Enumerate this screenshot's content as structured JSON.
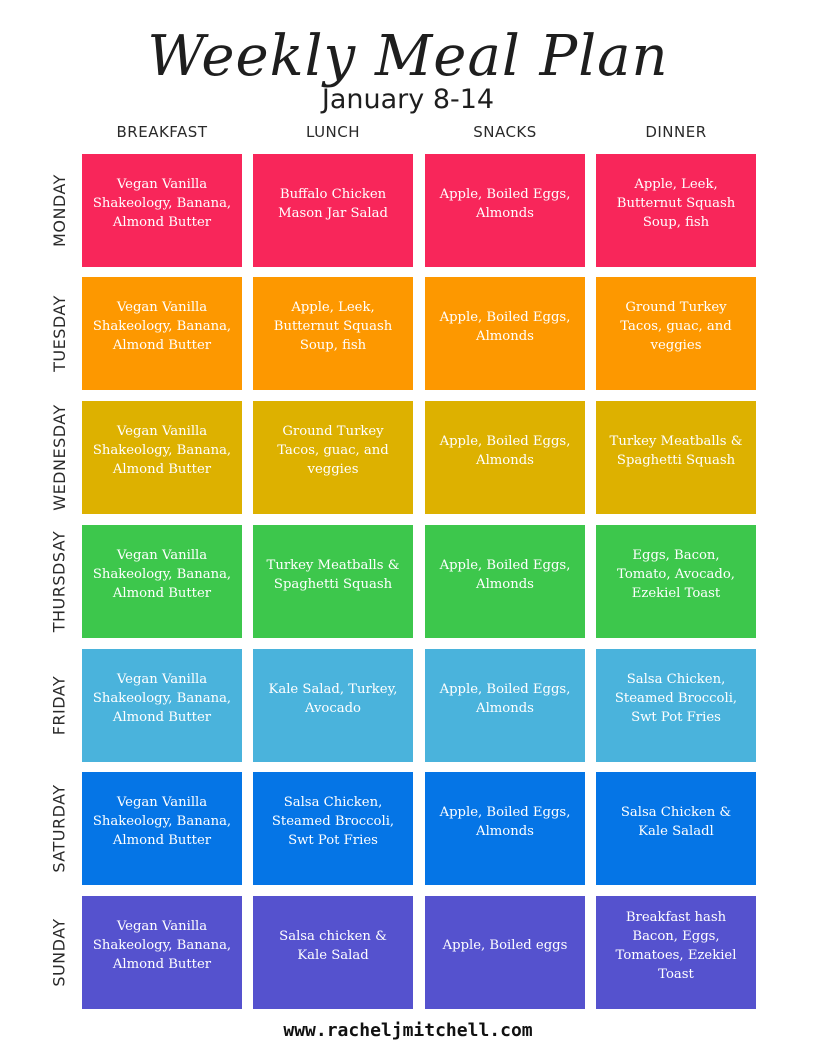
{
  "title": "Weekly Meal Plan",
  "subtitle": "January 8-14",
  "columns": [
    "BREAKFAST",
    "LUNCH",
    "SNACKS",
    "DINNER"
  ],
  "days": [
    {
      "name": "MONDAY",
      "color": "#f8265a",
      "meals": [
        "Vegan Vanilla Shakeology, Banana, Almond Butter",
        "Buffalo Chicken Mason Jar Salad",
        "Apple, Boiled Eggs, Almonds",
        "Apple, Leek, Butternut Squash Soup, fish"
      ]
    },
    {
      "name": "TUESDAY",
      "color": "#fd9800",
      "meals": [
        "Vegan Vanilla Shakeology, Banana, Almond Butter",
        "Apple, Leek, Butternut Squash Soup, fish",
        "Apple, Boiled Eggs, Almonds",
        "Ground Turkey Tacos, guac, and veggies"
      ]
    },
    {
      "name": "WEDNESDAY",
      "color": "#ddb100",
      "meals": [
        "Vegan Vanilla Shakeology, Banana, Almond Butter",
        "Ground Turkey Tacos, guac, and veggies",
        "Apple, Boiled Eggs, Almonds",
        "Turkey Meatballs & Spaghetti Squash"
      ]
    },
    {
      "name": "THURSDSAY",
      "color": "#3dc74c",
      "meals": [
        "Vegan Vanilla Shakeology, Banana, Almond Butter",
        "Turkey Meatballs & Spaghetti Squash",
        "Apple, Boiled Eggs, Almonds",
        "Eggs, Bacon, Tomato, Avocado, Ezekiel Toast"
      ]
    },
    {
      "name": "FRIDAY",
      "color": "#4ab3dc",
      "meals": [
        "Vegan Vanilla Shakeology, Banana, Almond Butter",
        "Kale Salad, Turkey, Avocado",
        "Apple, Boiled Eggs, Almonds",
        "Salsa Chicken, Steamed Broccoli, Swt Pot Fries"
      ]
    },
    {
      "name": "SATURDAY",
      "color": "#0575e6",
      "meals": [
        "Vegan Vanilla Shakeology, Banana, Almond Butter",
        "Salsa Chicken, Steamed Broccoli, Swt Pot Fries",
        "Apple, Boiled Eggs, Almonds",
        "Salsa Chicken & Kale Saladl"
      ]
    },
    {
      "name": "SUNDAY",
      "color": "#5552ce",
      "meals": [
        "Vegan Vanilla Shakeology, Banana, Almond Butter",
        "Salsa  chicken & Kale Salad",
        "Apple, Boiled eggs",
        "Breakfast hash Bacon, Eggs, Tomatoes, Ezekiel Toast"
      ]
    }
  ],
  "footer": "www.racheljmitchell.com"
}
